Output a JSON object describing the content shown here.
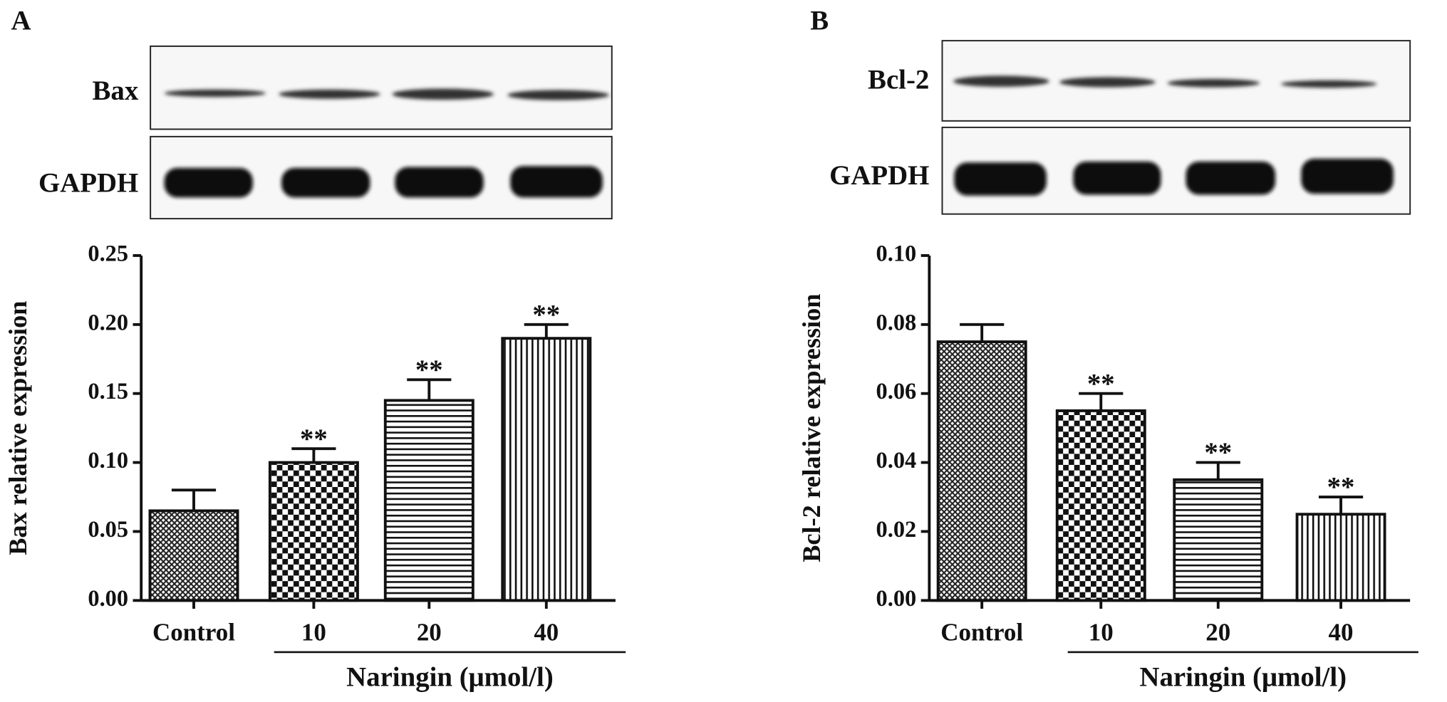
{
  "chart_data": [
    {
      "type": "bar",
      "panel_label": "A",
      "blot_labels": [
        "Bax",
        "GAPDH"
      ],
      "ylabel": "Bax relative expression",
      "xlabel": "Naringin (μmol/l)",
      "categories": [
        "Control",
        "10",
        "20",
        "40"
      ],
      "values": [
        0.065,
        0.1,
        0.145,
        0.19
      ],
      "errors": [
        0.015,
        0.01,
        0.015,
        0.01
      ],
      "annotations": [
        null,
        "**",
        "**",
        "**"
      ],
      "patterns": [
        "crosshatch",
        "checker",
        "hlines",
        "vlines"
      ],
      "ylim": [
        0,
        0.25
      ],
      "yticks": [
        {
          "value": 0,
          "label": "0.00"
        },
        0.05,
        {
          "value": 0.1,
          "label": "0.10"
        },
        0.15,
        {
          "value": 0.2,
          "label": "0.20"
        },
        0.25
      ]
    },
    {
      "type": "bar",
      "panel_label": "B",
      "blot_labels": [
        "Bcl-2",
        "GAPDH"
      ],
      "ylabel": "Bcl-2 relative expression",
      "xlabel": "Naringin (μmol/l)",
      "categories": [
        "Control",
        "10",
        "20",
        "40"
      ],
      "values": [
        0.075,
        0.055,
        0.035,
        0.025
      ],
      "errors": [
        0.005,
        0.005,
        0.005,
        0.005
      ],
      "annotations": [
        null,
        "**",
        "**",
        "**"
      ],
      "patterns": [
        "crosshatch",
        "checker",
        "hlines",
        "vlines"
      ],
      "ylim": [
        0,
        0.1
      ],
      "yticks": [
        {
          "value": 0,
          "label": "0.00"
        },
        0.02,
        0.04,
        0.06,
        0.08,
        {
          "value": 0.1,
          "label": "0.10"
        }
      ]
    }
  ]
}
